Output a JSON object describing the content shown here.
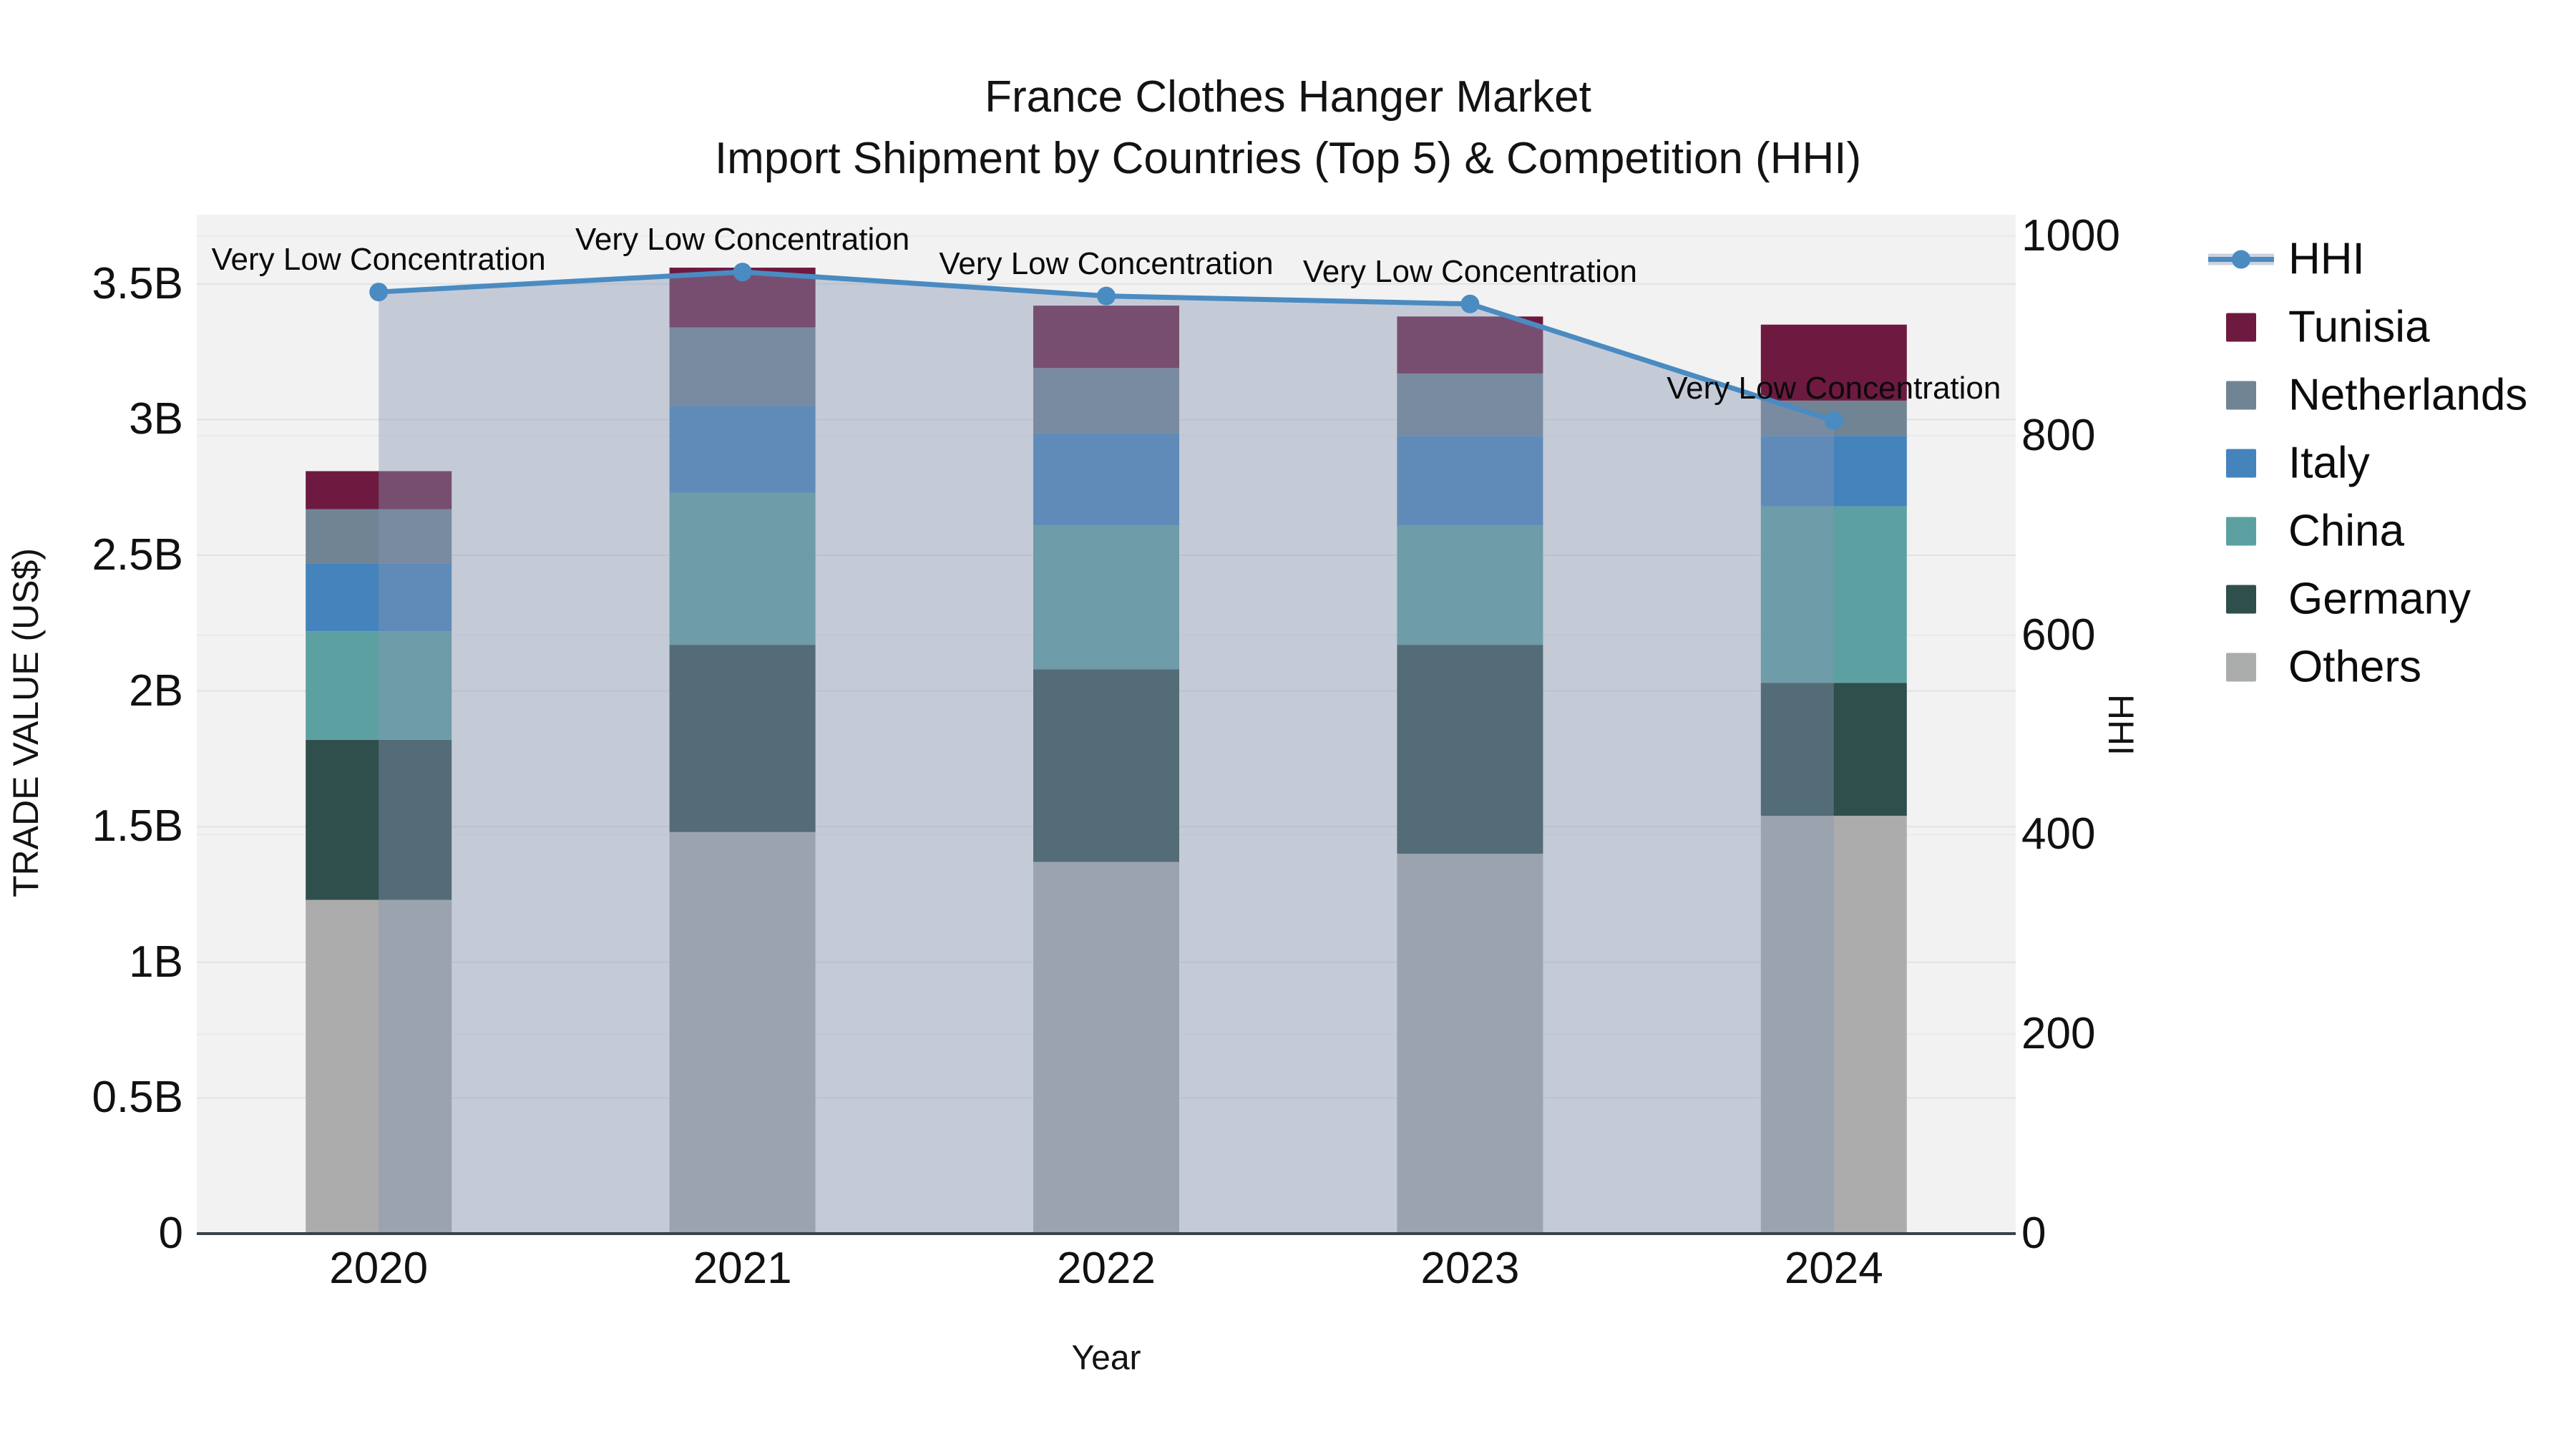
{
  "title": {
    "line1": "France Clothes Hanger Market",
    "line2": "Import Shipment by Countries (Top 5) & Competition (HHI)"
  },
  "axes": {
    "x": {
      "title": "Year",
      "categories": [
        "2020",
        "2021",
        "2022",
        "2023",
        "2024"
      ]
    },
    "left": {
      "title": "TRADE VALUE (US$)",
      "range_billions": [
        0,
        3.755
      ],
      "ticks": [
        {
          "label": "0",
          "value": 0
        },
        {
          "label": "0.5B",
          "value": 0.5
        },
        {
          "label": "1B",
          "value": 1
        },
        {
          "label": "1.5B",
          "value": 1.5
        },
        {
          "label": "2B",
          "value": 2
        },
        {
          "label": "2.5B",
          "value": 2.5
        },
        {
          "label": "3B",
          "value": 3
        },
        {
          "label": "3.5B",
          "value": 3.5
        }
      ]
    },
    "right": {
      "title": "HHI",
      "range": [
        0,
        1021
      ],
      "ticks": [
        {
          "label": "0",
          "value": 0
        },
        {
          "label": "200",
          "value": 200
        },
        {
          "label": "400",
          "value": 400
        },
        {
          "label": "600",
          "value": 600
        },
        {
          "label": "800",
          "value": 800
        },
        {
          "label": "1000",
          "value": 1000
        }
      ]
    }
  },
  "legend": {
    "entries": [
      {
        "id": "hhi",
        "label": "HHI",
        "type": "line-marker",
        "color": "#4A8BC2"
      },
      {
        "id": "tunisia",
        "label": "Tunisia",
        "type": "swatch",
        "color": "#6E1A40"
      },
      {
        "id": "netherlands",
        "label": "Netherlands",
        "type": "swatch",
        "color": "#708494"
      },
      {
        "id": "italy",
        "label": "Italy",
        "type": "swatch",
        "color": "#4583BD"
      },
      {
        "id": "china",
        "label": "China",
        "type": "swatch",
        "color": "#5DA0A2"
      },
      {
        "id": "germany",
        "label": "Germany",
        "type": "swatch",
        "color": "#2F4F4D"
      },
      {
        "id": "others",
        "label": "Others",
        "type": "swatch",
        "color": "#ABACAC"
      }
    ]
  },
  "colors": {
    "plot_bg": "#f2f2f2",
    "grid_left": "#e0e2e4",
    "grid_right": "#e8eaeb",
    "axis_line": "#39424a",
    "hhi_line": "#4A8BC2",
    "hhi_area": "rgba(134,150,179,0.42)"
  },
  "chart_data": {
    "type": "stacked-bar+line",
    "title": "France Clothes Hanger Market — Import Shipment by Countries (Top 5) & Competition (HHI)",
    "xlabel": "Year",
    "ylabel_left": "TRADE VALUE (US$)",
    "ylabel_right": "HHI",
    "categories": [
      "2020",
      "2021",
      "2022",
      "2023",
      "2024"
    ],
    "value_unit": "billion US$",
    "series": [
      {
        "name": "Tunisia",
        "color": "#6E1A40",
        "values": [
          0.14,
          0.22,
          0.23,
          0.21,
          0.28
        ]
      },
      {
        "name": "Netherlands",
        "color": "#708494",
        "values": [
          0.2,
          0.29,
          0.24,
          0.23,
          0.13
        ]
      },
      {
        "name": "Italy",
        "color": "#4583BD",
        "values": [
          0.25,
          0.32,
          0.34,
          0.33,
          0.26
        ]
      },
      {
        "name": "China",
        "color": "#5DA0A2",
        "values": [
          0.4,
          0.56,
          0.53,
          0.44,
          0.65
        ]
      },
      {
        "name": "Germany",
        "color": "#2F4F4D",
        "values": [
          0.59,
          0.69,
          0.71,
          0.77,
          0.49
        ]
      },
      {
        "name": "Others",
        "color": "#ABACAB",
        "values": [
          1.23,
          1.48,
          1.37,
          1.4,
          1.54
        ]
      }
    ],
    "stack_totals_billions": [
      2.81,
      3.56,
      3.42,
      3.38,
      3.35
    ],
    "line_series": {
      "name": "HHI",
      "axis": "right",
      "color": "#4A8BC2",
      "area_color": "rgba(134,150,179,0.42)",
      "values": [
        944,
        964,
        940,
        932,
        815
      ]
    },
    "annotations": [
      {
        "category": "2020",
        "text": "Very Low Concentration"
      },
      {
        "category": "2021",
        "text": "Very Low Concentration"
      },
      {
        "category": "2022",
        "text": "Very Low Concentration"
      },
      {
        "category": "2023",
        "text": "Very Low Concentration"
      },
      {
        "category": "2024",
        "text": "Very Low Concentration"
      }
    ],
    "layout_hints": {
      "grid": true,
      "legend_position": "outside-right",
      "area_spans": "first-to-last category center"
    }
  }
}
